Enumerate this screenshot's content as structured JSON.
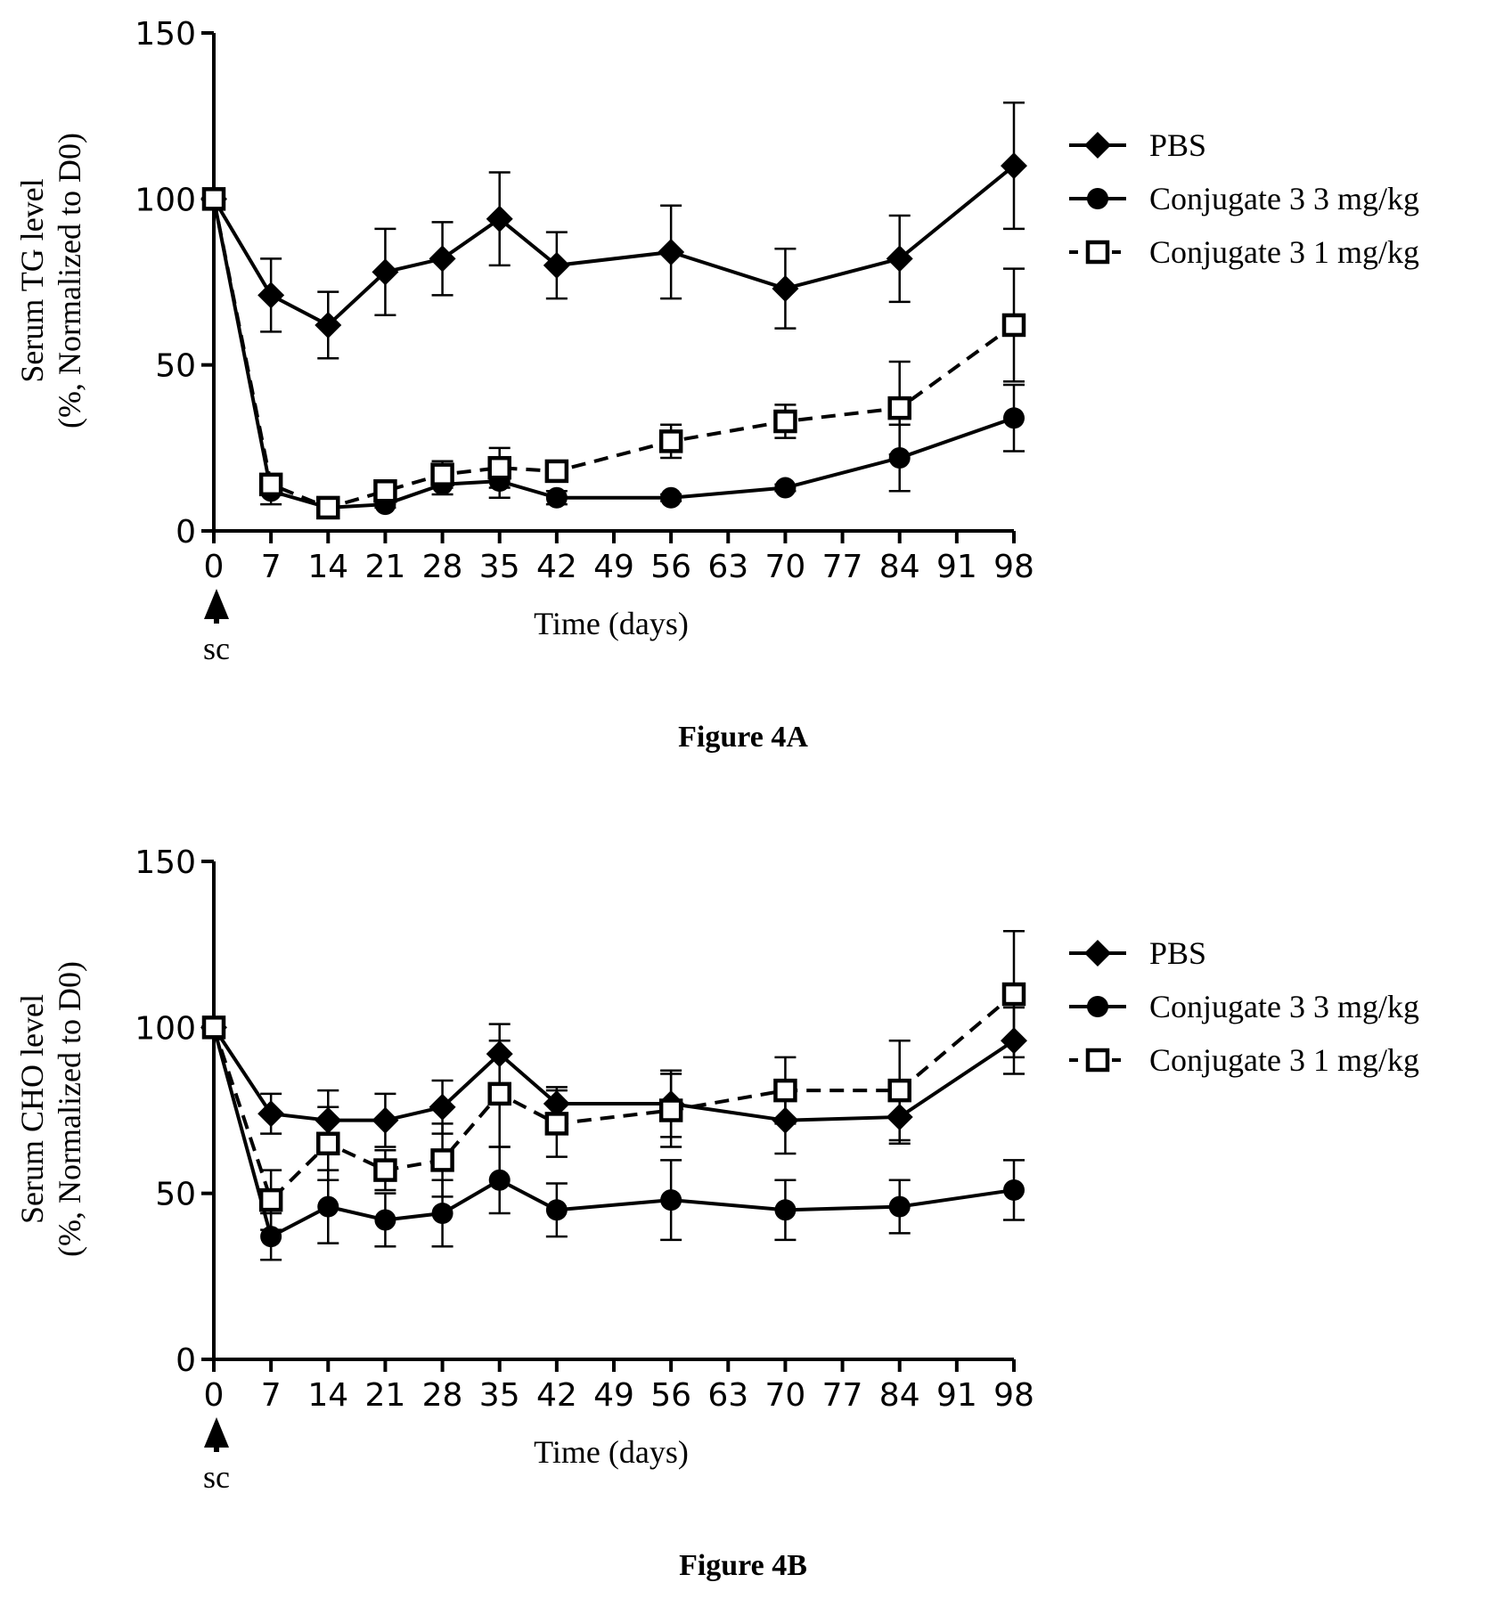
{
  "chart_data": [
    {
      "type": "line",
      "caption": "Figure 4A",
      "ylabel_lines": [
        "Serum TG level",
        "(%, Normalized to D0)"
      ],
      "xlabel": "Time (days)",
      "dosing_marker": "sc",
      "ylim": [
        0,
        150
      ],
      "yticks": [
        "0",
        "50",
        "100",
        "150"
      ],
      "xlim": [
        0,
        98
      ],
      "xticks": [
        "0",
        "7",
        "14",
        "21",
        "28",
        "35",
        "42",
        "49",
        "56",
        "63",
        "70",
        "77",
        "84",
        "91",
        "98"
      ],
      "grid": false,
      "legend_position": "right",
      "series": [
        {
          "name": "PBS",
          "marker": "diamond",
          "line": "solid",
          "x": [
            0,
            7,
            14,
            21,
            28,
            35,
            42,
            56,
            70,
            84,
            98
          ],
          "y": [
            100,
            71,
            62,
            78,
            82,
            94,
            80,
            84,
            73,
            82,
            110
          ],
          "err": [
            0,
            11,
            10,
            13,
            11,
            14,
            10,
            14,
            12,
            13,
            19
          ]
        },
        {
          "name": "Conjugate 3 3 mg/kg",
          "marker": "circle",
          "line": "solid",
          "x": [
            0,
            7,
            14,
            21,
            28,
            35,
            42,
            56,
            70,
            84,
            98
          ],
          "y": [
            100,
            12,
            7,
            8,
            14,
            15,
            10,
            10,
            13,
            22,
            34
          ],
          "err": [
            0,
            4,
            1,
            1,
            3,
            5,
            2,
            1,
            1,
            10,
            10
          ]
        },
        {
          "name": "Conjugate 3 1 mg/kg",
          "marker": "square-open",
          "line": "dashed",
          "x": [
            0,
            7,
            14,
            21,
            28,
            35,
            42,
            56,
            70,
            84,
            98
          ],
          "y": [
            100,
            14,
            7,
            12,
            17,
            19,
            18,
            27,
            33,
            37,
            62
          ],
          "err": [
            0,
            3,
            2,
            3,
            4,
            6,
            3,
            5,
            5,
            14,
            17
          ]
        }
      ]
    },
    {
      "type": "line",
      "caption": "Figure 4B",
      "ylabel_lines": [
        "Serum CHO level",
        "(%, Normalized to D0)"
      ],
      "xlabel": "Time (days)",
      "dosing_marker": "sc",
      "ylim": [
        0,
        150
      ],
      "yticks": [
        "0",
        "50",
        "100",
        "150"
      ],
      "xlim": [
        0,
        98
      ],
      "xticks": [
        "0",
        "7",
        "14",
        "21",
        "28",
        "35",
        "42",
        "49",
        "56",
        "63",
        "70",
        "77",
        "84",
        "91",
        "98"
      ],
      "grid": false,
      "legend_position": "right",
      "series": [
        {
          "name": "PBS",
          "marker": "diamond",
          "line": "solid",
          "x": [
            0,
            7,
            14,
            21,
            28,
            35,
            42,
            56,
            70,
            84,
            98
          ],
          "y": [
            100,
            74,
            72,
            72,
            76,
            92,
            77,
            77,
            72,
            73,
            96
          ],
          "err": [
            0,
            6,
            9,
            8,
            8,
            9,
            5,
            10,
            10,
            8,
            10
          ]
        },
        {
          "name": "Conjugate 3 3 mg/kg",
          "marker": "circle",
          "line": "solid",
          "x": [
            0,
            7,
            14,
            21,
            28,
            35,
            42,
            56,
            70,
            84,
            98
          ],
          "y": [
            100,
            37,
            46,
            42,
            44,
            54,
            45,
            48,
            45,
            46,
            51
          ],
          "err": [
            0,
            7,
            11,
            8,
            10,
            10,
            8,
            12,
            9,
            8,
            9
          ]
        },
        {
          "name": "Conjugate 3 1 mg/kg",
          "marker": "square-open",
          "line": "dashed",
          "x": [
            0,
            7,
            14,
            21,
            28,
            35,
            42,
            56,
            70,
            84,
            98
          ],
          "y": [
            100,
            48,
            65,
            57,
            60,
            80,
            71,
            75,
            81,
            81,
            110
          ],
          "err": [
            0,
            9,
            11,
            6,
            11,
            16,
            10,
            11,
            10,
            15,
            19
          ]
        }
      ]
    }
  ]
}
